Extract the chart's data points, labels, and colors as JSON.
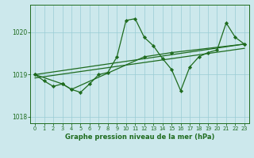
{
  "title": "Graphe pression niveau de la mer (hPa)",
  "bg_color": "#cce8ec",
  "grid_color": "#99ccd4",
  "line_color": "#1e6b1e",
  "xlim": [
    -0.5,
    23.5
  ],
  "ylim": [
    1017.85,
    1020.65
  ],
  "yticks": [
    1018,
    1019,
    1020
  ],
  "xticks": [
    0,
    1,
    2,
    3,
    4,
    5,
    6,
    7,
    8,
    9,
    10,
    11,
    12,
    13,
    14,
    15,
    16,
    17,
    18,
    19,
    20,
    21,
    22,
    23
  ],
  "series1_x": [
    0,
    1,
    2,
    3,
    4,
    5,
    6,
    7,
    8,
    9,
    10,
    11,
    12,
    13,
    14,
    15,
    16,
    17,
    18,
    19,
    20,
    21,
    22,
    23
  ],
  "series1_y": [
    1019.0,
    1018.85,
    1018.72,
    1018.78,
    1018.65,
    1018.58,
    1018.78,
    1019.0,
    1019.05,
    1019.42,
    1020.28,
    1020.32,
    1019.88,
    1019.68,
    1019.38,
    1019.12,
    1018.62,
    1019.18,
    1019.42,
    1019.52,
    1019.58,
    1020.22,
    1019.88,
    1019.72
  ],
  "series2_x": [
    0,
    3,
    4,
    12,
    15,
    23
  ],
  "series2_y": [
    1019.0,
    1018.78,
    1018.65,
    1019.42,
    1019.52,
    1019.72
  ],
  "trend1_x": [
    0,
    23
  ],
  "trend1_y": [
    1018.92,
    1019.62
  ],
  "trend2_x": [
    0,
    23
  ],
  "trend2_y": [
    1019.0,
    1019.72
  ]
}
